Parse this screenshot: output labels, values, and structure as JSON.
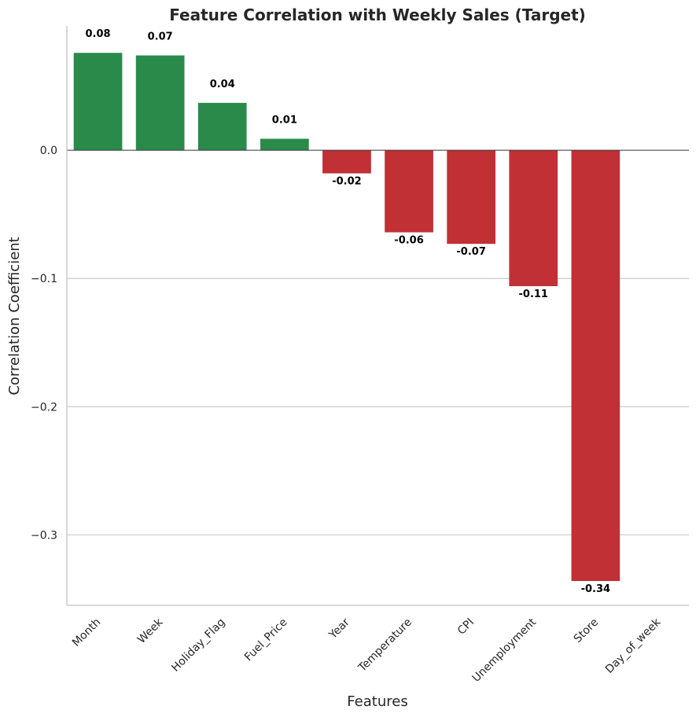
{
  "chart_data": {
    "type": "bar",
    "title": "Feature Correlation with Weekly Sales (Target)",
    "xlabel": "Features",
    "ylabel": "Correlation Coefficient",
    "categories": [
      "Month",
      "Week",
      "Holiday_Flag",
      "Fuel_Price",
      "Year",
      "Temperature",
      "CPI",
      "Unemployment",
      "Store",
      "Day_of_week"
    ],
    "values": [
      0.076,
      0.074,
      0.037,
      0.009,
      -0.018,
      -0.064,
      -0.073,
      -0.106,
      -0.336,
      0.0
    ],
    "data_labels": [
      "0.08",
      "0.07",
      "0.04",
      "0.01",
      "-0.02",
      "-0.06",
      "-0.07",
      "-0.11",
      "-0.34",
      ""
    ],
    "ylim": [
      -0.355,
      0.097
    ],
    "yticks": [
      0.0,
      -0.1,
      -0.2,
      -0.3
    ],
    "ytick_labels": [
      "0.0",
      "−0.1",
      "−0.2",
      "−0.3"
    ],
    "grid": "horizontal",
    "colors": {
      "positive": "#2a8a4a",
      "negative": "#c03035"
    }
  }
}
